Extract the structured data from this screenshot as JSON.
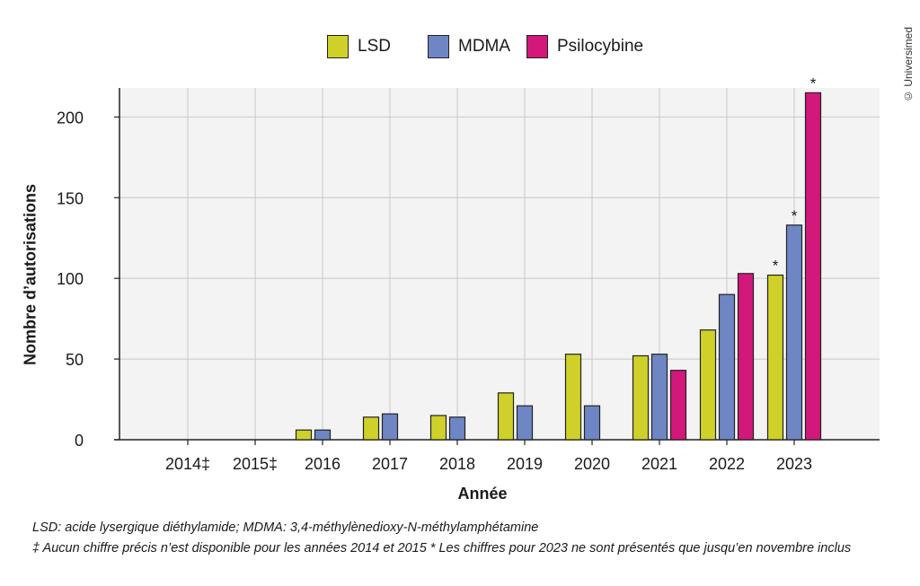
{
  "credit": "© Universimed",
  "notes": [
    "LSD: acide lysergique diéthylamide; MDMA: 3,4-méthylènedioxy-N-méthylamphétamine",
    "‡ Aucun chiffre précis n’est disponible pour les années 2014 et 2015  * Les chiffres pour 2023 ne sont présentés que jusqu’en novembre inclus"
  ],
  "chart_data": {
    "type": "bar",
    "xlabel": "Année",
    "ylabel": "Nombre d’autorisations",
    "ylim": [
      0,
      218
    ],
    "yticks": [
      0,
      50,
      100,
      150,
      200
    ],
    "grid": true,
    "legend_position": "top-center",
    "categories": [
      "2014‡",
      "2015‡",
      "2016",
      "2017",
      "2018",
      "2019",
      "2020",
      "2021",
      "2022",
      "2023"
    ],
    "series": [
      {
        "name": "LSD",
        "color": "#cfd12a",
        "values": [
          null,
          null,
          6,
          14,
          15,
          29,
          53,
          52,
          68,
          102
        ],
        "annotations": [
          null,
          null,
          null,
          null,
          null,
          null,
          null,
          null,
          null,
          "*"
        ]
      },
      {
        "name": "MDMA",
        "color": "#6f86c5",
        "values": [
          null,
          null,
          6,
          16,
          14,
          21,
          21,
          53,
          90,
          133
        ],
        "annotations": [
          null,
          null,
          null,
          null,
          null,
          null,
          null,
          null,
          null,
          "*"
        ]
      },
      {
        "name": "Psilocybine",
        "color": "#d2187a",
        "values": [
          null,
          null,
          null,
          null,
          null,
          null,
          null,
          43,
          103,
          215
        ],
        "annotations": [
          null,
          null,
          null,
          null,
          null,
          null,
          null,
          null,
          null,
          "*"
        ]
      }
    ]
  }
}
